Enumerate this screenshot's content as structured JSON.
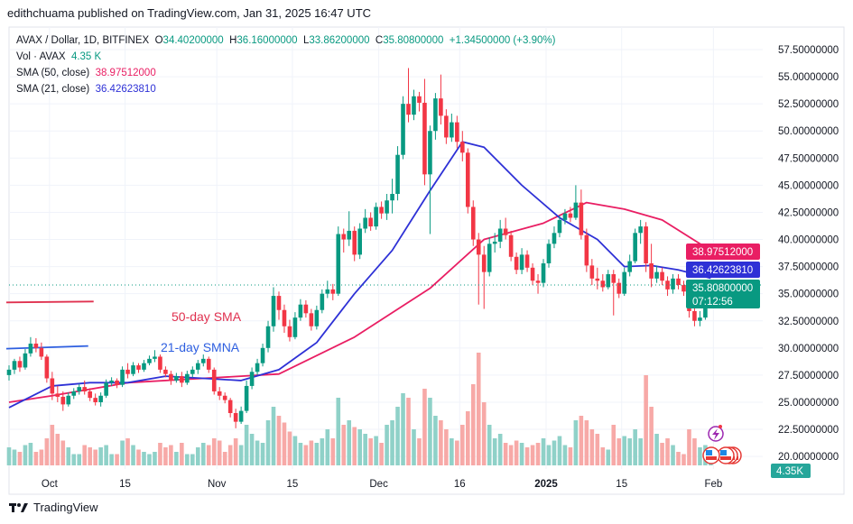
{
  "published": "edithchuama published on TradingView.com, Jan 31, 2025 16:47 UTC",
  "legend": {
    "symbol": "AVAX / Dollar, 1D, BITFINEX",
    "o_label": "O",
    "o": "34.40200000",
    "h_label": "H",
    "h": "36.16000000",
    "l_label": "L",
    "l": "33.86200000",
    "c_label": "C",
    "c": "35.80800000",
    "change": "+1.34500000 (+3.90%)",
    "vol_label": "Vol · AVAX",
    "vol": "4.35 K",
    "sma50_label": "SMA (50, close)",
    "sma50": "38.97512000",
    "sma21_label": "SMA (21, close)",
    "sma21": "36.42623810"
  },
  "annotations": {
    "sma50_text": "50-day SMA",
    "sma21_text": "21-day SMNA"
  },
  "price_badges": {
    "sma50": "38.97512000",
    "sma21": "36.42623810",
    "last": "35.80800000",
    "countdown": "07:12:56",
    "volume": "4.35K"
  },
  "footer": {
    "brand": "TradingView"
  },
  "colors": {
    "up": "#089981",
    "down": "#f23645",
    "sma50": "#e91e63",
    "sma21": "#2e31d6",
    "vol_up": "#8fd1c8",
    "vol_down": "#f7a9a7"
  },
  "chart_data": {
    "type": "candlestick",
    "y_ticks": [
      "57.50000000",
      "55.00000000",
      "52.50000000",
      "50.00000000",
      "47.50000000",
      "45.00000000",
      "42.50000000",
      "40.00000000",
      "37.50000000",
      "35.00000000",
      "32.50000000",
      "30.00000000",
      "27.50000000",
      "25.00000000",
      "22.50000000",
      "20.00000000"
    ],
    "ylim": [
      20,
      57.5
    ],
    "x_ticks": [
      [
        "2024-10-01",
        "Oct"
      ],
      [
        "2024-10-15",
        "15"
      ],
      [
        "2024-11-01",
        "Nov"
      ],
      [
        "2024-11-15",
        "15"
      ],
      [
        "2024-12-01",
        "Dec"
      ],
      [
        "2024-12-16",
        "16"
      ],
      [
        "2025-01-01",
        "2025"
      ],
      [
        "2025-01-15",
        "15"
      ],
      [
        "2025-02-01",
        "Feb"
      ]
    ],
    "grid": true,
    "candles_columns": [
      "date",
      "open",
      "high",
      "low",
      "close",
      "volume_k"
    ],
    "candles": [
      [
        "2024-09-23",
        27.5,
        28.4,
        27.0,
        28.0,
        8
      ],
      [
        "2024-09-24",
        28.0,
        29.0,
        27.6,
        28.8,
        7
      ],
      [
        "2024-09-25",
        28.8,
        29.2,
        27.8,
        28.2,
        6
      ],
      [
        "2024-09-26",
        28.2,
        29.9,
        28.0,
        29.5,
        9
      ],
      [
        "2024-09-27",
        29.5,
        31.0,
        29.2,
        30.4,
        10
      ],
      [
        "2024-09-28",
        30.4,
        30.9,
        29.6,
        30.0,
        6
      ],
      [
        "2024-09-29",
        30.0,
        30.5,
        28.9,
        29.2,
        7
      ],
      [
        "2024-09-30",
        29.2,
        29.4,
        26.8,
        27.2,
        12
      ],
      [
        "2024-10-01",
        27.2,
        27.8,
        25.2,
        25.8,
        18
      ],
      [
        "2024-10-02",
        25.8,
        26.5,
        25.0,
        25.5,
        14
      ],
      [
        "2024-10-03",
        25.5,
        26.0,
        24.2,
        24.8,
        11
      ],
      [
        "2024-10-04",
        24.8,
        25.9,
        24.6,
        25.6,
        8
      ],
      [
        "2024-10-05",
        25.6,
        26.3,
        25.3,
        26.0,
        5
      ],
      [
        "2024-10-06",
        26.0,
        26.7,
        25.7,
        26.4,
        5
      ],
      [
        "2024-10-07",
        26.4,
        27.0,
        25.7,
        26.0,
        9
      ],
      [
        "2024-10-08",
        26.0,
        26.3,
        25.1,
        25.4,
        8
      ],
      [
        "2024-10-09",
        25.4,
        25.8,
        24.7,
        25.0,
        7
      ],
      [
        "2024-10-10",
        25.0,
        25.9,
        24.6,
        25.6,
        8
      ],
      [
        "2024-10-11",
        25.6,
        27.1,
        25.4,
        26.8,
        9
      ],
      [
        "2024-10-12",
        26.8,
        27.3,
        26.5,
        27.0,
        5
      ],
      [
        "2024-10-13",
        27.0,
        27.2,
        26.3,
        26.6,
        5
      ],
      [
        "2024-10-14",
        26.6,
        28.3,
        26.4,
        28.0,
        11
      ],
      [
        "2024-10-15",
        28.0,
        28.6,
        27.2,
        27.6,
        12
      ],
      [
        "2024-10-16",
        27.6,
        28.7,
        27.4,
        28.4,
        9
      ],
      [
        "2024-10-17",
        28.4,
        28.6,
        27.7,
        28.0,
        7
      ],
      [
        "2024-10-18",
        28.0,
        28.9,
        27.8,
        28.6,
        6
      ],
      [
        "2024-10-19",
        28.6,
        29.3,
        28.4,
        29.0,
        5
      ],
      [
        "2024-10-20",
        29.0,
        29.8,
        28.7,
        29.2,
        6
      ],
      [
        "2024-10-21",
        29.2,
        29.4,
        27.7,
        28.0,
        10
      ],
      [
        "2024-10-22",
        28.0,
        28.3,
        27.3,
        27.6,
        8
      ],
      [
        "2024-10-23",
        27.6,
        27.9,
        26.6,
        27.0,
        9
      ],
      [
        "2024-10-24",
        27.0,
        27.7,
        26.8,
        27.4,
        6
      ],
      [
        "2024-10-25",
        27.4,
        27.8,
        26.4,
        26.8,
        10
      ],
      [
        "2024-10-26",
        26.8,
        27.9,
        26.6,
        27.6,
        5
      ],
      [
        "2024-10-27",
        27.6,
        28.3,
        27.3,
        28.0,
        5
      ],
      [
        "2024-10-28",
        28.0,
        28.9,
        27.6,
        28.6,
        8
      ],
      [
        "2024-10-29",
        28.6,
        29.4,
        28.3,
        29.0,
        10
      ],
      [
        "2024-10-30",
        29.0,
        29.2,
        27.7,
        28.0,
        9
      ],
      [
        "2024-10-31",
        28.0,
        28.2,
        25.7,
        26.0,
        12
      ],
      [
        "2024-11-01",
        26.0,
        26.4,
        25.2,
        25.6,
        11
      ],
      [
        "2024-11-02",
        25.6,
        25.9,
        24.9,
        25.2,
        6
      ],
      [
        "2024-11-03",
        25.2,
        25.4,
        23.6,
        24.0,
        9
      ],
      [
        "2024-11-04",
        24.0,
        24.4,
        22.6,
        23.2,
        12
      ],
      [
        "2024-11-05",
        23.2,
        24.6,
        23.0,
        24.2,
        9
      ],
      [
        "2024-11-06",
        24.2,
        27.0,
        24.0,
        26.5,
        18
      ],
      [
        "2024-11-07",
        26.5,
        28.2,
        26.2,
        27.8,
        14
      ],
      [
        "2024-11-08",
        27.8,
        29.0,
        27.5,
        28.6,
        11
      ],
      [
        "2024-11-09",
        28.6,
        30.4,
        28.3,
        30.0,
        10
      ],
      [
        "2024-11-10",
        30.0,
        32.5,
        29.6,
        32.0,
        20
      ],
      [
        "2024-11-11",
        32.0,
        35.6,
        31.5,
        34.8,
        26
      ],
      [
        "2024-11-12",
        34.8,
        35.2,
        32.6,
        33.5,
        22
      ],
      [
        "2024-11-13",
        33.5,
        34.0,
        31.4,
        32.0,
        19
      ],
      [
        "2024-11-14",
        32.0,
        32.6,
        30.6,
        31.0,
        15
      ],
      [
        "2024-11-15",
        31.0,
        33.3,
        30.8,
        32.8,
        13
      ],
      [
        "2024-11-16",
        32.8,
        34.5,
        32.5,
        34.0,
        10
      ],
      [
        "2024-11-17",
        34.0,
        34.4,
        32.8,
        33.2,
        9
      ],
      [
        "2024-11-18",
        33.2,
        33.6,
        31.6,
        32.0,
        11
      ],
      [
        "2024-11-19",
        32.0,
        33.9,
        31.7,
        33.5,
        10
      ],
      [
        "2024-11-20",
        33.5,
        35.4,
        33.2,
        35.0,
        12
      ],
      [
        "2024-11-21",
        35.0,
        36.2,
        34.6,
        35.4,
        16
      ],
      [
        "2024-11-22",
        35.4,
        35.9,
        34.4,
        35.0,
        12
      ],
      [
        "2024-11-23",
        35.0,
        41.2,
        34.8,
        40.5,
        30
      ],
      [
        "2024-11-24",
        40.5,
        41.0,
        38.8,
        40.0,
        18
      ],
      [
        "2024-11-25",
        40.0,
        42.6,
        39.4,
        40.8,
        20
      ],
      [
        "2024-11-26",
        40.8,
        41.2,
        38.0,
        38.6,
        17
      ],
      [
        "2024-11-27",
        38.6,
        41.5,
        38.2,
        41.0,
        16
      ],
      [
        "2024-11-28",
        41.0,
        42.8,
        40.6,
        42.0,
        14
      ],
      [
        "2024-11-29",
        42.0,
        42.5,
        40.8,
        41.2,
        12
      ],
      [
        "2024-11-30",
        41.2,
        43.4,
        40.9,
        43.0,
        13
      ],
      [
        "2024-12-01",
        43.0,
        43.5,
        41.9,
        42.4,
        10
      ],
      [
        "2024-12-02",
        42.4,
        44.2,
        41.8,
        43.6,
        18
      ],
      [
        "2024-12-03",
        43.6,
        45.6,
        42.4,
        44.2,
        20
      ],
      [
        "2024-12-04",
        44.2,
        48.6,
        43.6,
        47.8,
        26
      ],
      [
        "2024-12-05",
        47.8,
        53.2,
        47.4,
        52.5,
        32
      ],
      [
        "2024-12-06",
        52.5,
        55.8,
        50.8,
        51.5,
        30
      ],
      [
        "2024-12-07",
        51.5,
        53.8,
        51.0,
        53.2,
        16
      ],
      [
        "2024-12-08",
        53.2,
        53.6,
        51.8,
        52.6,
        12
      ],
      [
        "2024-12-09",
        52.6,
        54.8,
        45.0,
        46.0,
        34
      ],
      [
        "2024-12-10",
        46.0,
        50.5,
        40.5,
        50.0,
        30
      ],
      [
        "2024-12-11",
        50.0,
        53.5,
        49.2,
        53.0,
        22
      ],
      [
        "2024-12-12",
        53.0,
        55.2,
        50.6,
        51.4,
        20
      ],
      [
        "2024-12-13",
        51.4,
        52.0,
        48.8,
        49.4,
        16
      ],
      [
        "2024-12-14",
        49.4,
        51.6,
        49.0,
        50.8,
        12
      ],
      [
        "2024-12-15",
        50.8,
        51.4,
        48.4,
        49.0,
        11
      ],
      [
        "2024-12-16",
        49.0,
        50.0,
        47.2,
        48.0,
        18
      ],
      [
        "2024-12-17",
        48.0,
        48.4,
        42.4,
        43.0,
        24
      ],
      [
        "2024-12-18",
        43.0,
        43.6,
        39.4,
        40.0,
        36
      ],
      [
        "2024-12-19",
        40.0,
        40.6,
        34.0,
        38.6,
        50
      ],
      [
        "2024-12-20",
        38.6,
        39.4,
        33.6,
        37.0,
        28
      ],
      [
        "2024-12-21",
        37.0,
        40.2,
        36.6,
        39.6,
        18
      ],
      [
        "2024-12-22",
        39.6,
        40.6,
        38.8,
        39.8,
        12
      ],
      [
        "2024-12-23",
        39.8,
        41.8,
        39.2,
        41.0,
        14
      ],
      [
        "2024-12-24",
        41.0,
        42.0,
        40.0,
        40.4,
        10
      ],
      [
        "2024-12-25",
        40.4,
        40.8,
        38.0,
        38.4,
        9
      ],
      [
        "2024-12-26",
        38.4,
        38.8,
        36.8,
        37.2,
        11
      ],
      [
        "2024-12-27",
        37.2,
        39.2,
        36.8,
        38.6,
        10
      ],
      [
        "2024-12-28",
        38.6,
        39.0,
        37.0,
        37.4,
        8
      ],
      [
        "2024-12-29",
        37.4,
        37.8,
        35.8,
        36.2,
        9
      ],
      [
        "2024-12-30",
        36.2,
        36.8,
        35.0,
        36.0,
        10
      ],
      [
        "2024-12-31",
        36.0,
        38.2,
        35.6,
        37.8,
        12
      ],
      [
        "2025-01-01",
        37.8,
        40.0,
        37.4,
        39.6,
        9
      ],
      [
        "2025-01-02",
        39.6,
        41.2,
        39.2,
        40.6,
        11
      ],
      [
        "2025-01-03",
        40.6,
        42.2,
        40.2,
        41.8,
        13
      ],
      [
        "2025-01-04",
        41.8,
        42.8,
        41.4,
        42.4,
        9
      ],
      [
        "2025-01-05",
        42.4,
        43.0,
        41.6,
        42.0,
        8
      ],
      [
        "2025-01-06",
        42.0,
        45.0,
        41.8,
        43.4,
        20
      ],
      [
        "2025-01-07",
        43.4,
        44.6,
        40.0,
        40.4,
        22
      ],
      [
        "2025-01-08",
        40.4,
        41.0,
        37.0,
        37.6,
        20
      ],
      [
        "2025-01-09",
        37.6,
        38.2,
        35.8,
        36.4,
        16
      ],
      [
        "2025-01-10",
        36.4,
        37.4,
        35.4,
        36.2,
        14
      ],
      [
        "2025-01-11",
        36.2,
        36.8,
        35.2,
        35.6,
        8
      ],
      [
        "2025-01-12",
        35.6,
        37.2,
        35.4,
        36.8,
        7
      ],
      [
        "2025-01-13",
        36.8,
        37.2,
        33.0,
        36.0,
        18
      ],
      [
        "2025-01-14",
        36.0,
        36.4,
        34.6,
        35.0,
        12
      ],
      [
        "2025-01-15",
        35.0,
        37.4,
        34.8,
        37.0,
        13
      ],
      [
        "2025-01-16",
        37.0,
        38.6,
        36.6,
        38.0,
        12
      ],
      [
        "2025-01-17",
        38.0,
        41.0,
        37.8,
        40.6,
        16
      ],
      [
        "2025-01-18",
        40.6,
        41.8,
        39.6,
        41.2,
        12
      ],
      [
        "2025-01-19",
        41.2,
        41.6,
        37.0,
        37.8,
        40
      ],
      [
        "2025-01-20",
        37.8,
        39.6,
        35.6,
        36.4,
        26
      ],
      [
        "2025-01-21",
        36.4,
        37.6,
        36.0,
        37.0,
        14
      ],
      [
        "2025-01-22",
        37.0,
        37.4,
        35.8,
        36.2,
        10
      ],
      [
        "2025-01-23",
        36.2,
        36.6,
        34.8,
        35.4,
        12
      ],
      [
        "2025-01-24",
        35.4,
        36.8,
        35.0,
        36.4,
        9
      ],
      [
        "2025-01-25",
        36.4,
        36.8,
        35.4,
        35.8,
        6
      ],
      [
        "2025-01-26",
        35.8,
        36.2,
        34.8,
        35.2,
        5
      ],
      [
        "2025-01-27",
        35.2,
        35.6,
        32.8,
        33.4,
        16
      ],
      [
        "2025-01-28",
        33.4,
        34.6,
        32.0,
        32.5,
        12
      ],
      [
        "2025-01-29",
        32.5,
        33.4,
        32.0,
        32.8,
        8
      ],
      [
        "2025-01-30",
        32.8,
        34.8,
        32.6,
        34.4,
        9
      ],
      [
        "2025-01-31",
        34.402,
        36.16,
        33.862,
        35.808,
        4.35
      ]
    ],
    "series": [
      {
        "name": "SMA (21, close)",
        "points": [
          [
            "2024-09-23",
            24.5
          ],
          [
            "2024-10-01",
            26.5
          ],
          [
            "2024-10-08",
            26.8
          ],
          [
            "2024-10-15",
            26.8
          ],
          [
            "2024-10-22",
            27.4
          ],
          [
            "2024-10-29",
            27.2
          ],
          [
            "2024-11-05",
            27.0
          ],
          [
            "2024-11-12",
            28.0
          ],
          [
            "2024-11-19",
            30.5
          ],
          [
            "2024-11-26",
            35.0
          ],
          [
            "2024-12-03",
            39.0
          ],
          [
            "2024-12-10",
            44.5
          ],
          [
            "2024-12-16",
            49.0
          ],
          [
            "2024-12-20",
            48.5
          ],
          [
            "2024-12-27",
            45.0
          ],
          [
            "2025-01-03",
            42.0
          ],
          [
            "2025-01-10",
            40.0
          ],
          [
            "2025-01-15",
            37.5
          ],
          [
            "2025-01-20",
            37.6
          ],
          [
            "2025-01-25",
            37.2
          ],
          [
            "2025-01-31",
            36.43
          ]
        ]
      },
      {
        "name": "SMA (50, close)",
        "points": [
          [
            "2024-09-23",
            25.0
          ],
          [
            "2024-10-01",
            25.6
          ],
          [
            "2024-10-15",
            26.8
          ],
          [
            "2024-10-29",
            27.2
          ],
          [
            "2024-11-12",
            27.6
          ],
          [
            "2024-11-26",
            31.0
          ],
          [
            "2024-12-10",
            35.5
          ],
          [
            "2024-12-20",
            40.0
          ],
          [
            "2024-12-31",
            41.5
          ],
          [
            "2025-01-08",
            43.4
          ],
          [
            "2025-01-15",
            42.8
          ],
          [
            "2025-01-22",
            41.8
          ],
          [
            "2025-01-31",
            38.98
          ]
        ]
      }
    ],
    "drawn_lines": [
      {
        "label": "50-day SMA",
        "from": "2024-09-23",
        "to": "2024-10-07",
        "price": 34.2
      },
      {
        "label": "21-day SMNA",
        "from": "2024-09-23",
        "to": "2024-10-06",
        "price": 30.1
      }
    ],
    "last_price": 35.808
  }
}
